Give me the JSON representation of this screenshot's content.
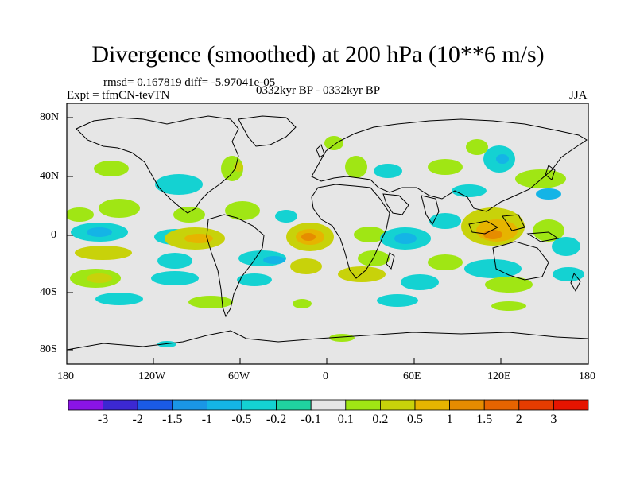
{
  "title": "Divergence (smoothed) at 200 hPa (10**6 m/s)",
  "stats": "rmsd= 0.167819 diff= -5.97041e-05",
  "expt": "Expt = tfmCN-tevTN",
  "period": "0332kyr BP - 0332kyr BP",
  "season": "JJA",
  "lat_ticks": [
    "80N",
    "40N",
    "0",
    "40S",
    "80S"
  ],
  "lon_ticks": [
    "180",
    "120W",
    "60W",
    "0",
    "60E",
    "120E",
    "180"
  ],
  "colorbar": {
    "labels": [
      "-3",
      "-2",
      "-1.5",
      "-1",
      "-0.5",
      "-0.2",
      "-0.1",
      "0.1",
      "0.2",
      "0.5",
      "1",
      "1.5",
      "2",
      "3"
    ],
    "colors": [
      "#8a14e6",
      "#3c28d2",
      "#1a5ae6",
      "#1a96e6",
      "#14b4e6",
      "#14d2d2",
      "#20d2a0",
      "#e6e6e6",
      "#a0e614",
      "#c8d20a",
      "#e6b400",
      "#e68c00",
      "#e66400",
      "#e63c00",
      "#e61400"
    ]
  },
  "background_color": "#e6e6e6"
}
